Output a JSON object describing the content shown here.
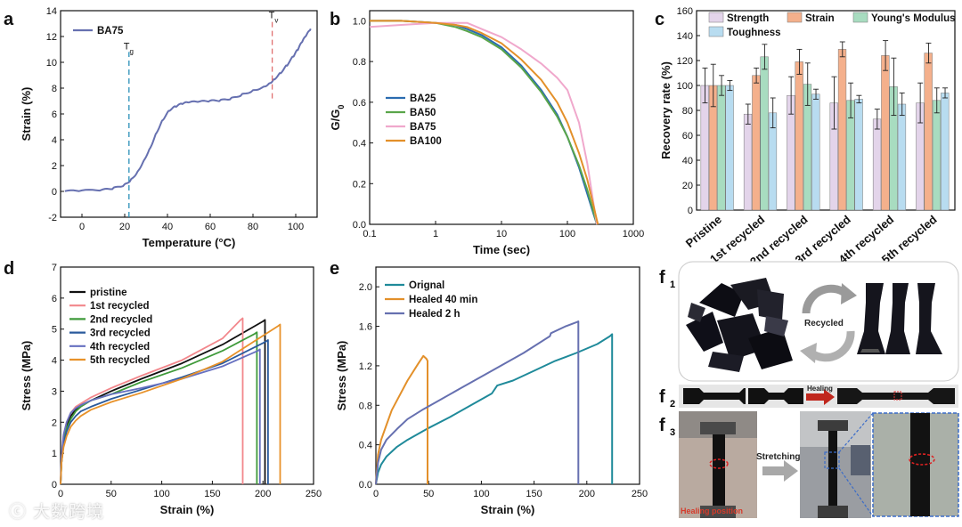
{
  "panel_labels": {
    "a": "a",
    "b": "b",
    "c": "c",
    "d": "d",
    "e": "e",
    "f1": "f",
    "f1_sub": "1",
    "f2": "f",
    "f2_sub": "2",
    "f3": "f",
    "f3_sub": "3"
  },
  "photos": {
    "f1_label": "Recycled",
    "f2_label": "Healing",
    "f3_label": "Stretching",
    "f3_caption": "Healing position"
  },
  "watermark": "大数跨境",
  "colors": {
    "ba75": "#6670b0",
    "tg_line": "#2a8fb8",
    "tv_line": "#e07070",
    "ba25": "#2a6cb0",
    "ba50": "#5aa54a",
    "ba75b": "#f0a8cc",
    "ba100": "#e3902a",
    "strength": "#e3d4ea",
    "strain": "#f4b08c",
    "modulus": "#a8dcc0",
    "toughness": "#b8dcf0",
    "pristine": "#111111",
    "r1": "#f2878c",
    "r2": "#3f9a3a",
    "r3": "#2a5a9c",
    "r4": "#6670c0",
    "r5": "#e8922a",
    "orig": "#1f8a9a",
    "healed40": "#e3902a",
    "healed2h": "#6670b0"
  },
  "chart_data": [
    {
      "id": "a",
      "type": "line",
      "xlabel": "Temperature (°C)",
      "ylabel": "Strain (%)",
      "xlim": [
        -10,
        110
      ],
      "ylim": [
        -2,
        14
      ],
      "xticks": [
        0,
        20,
        40,
        60,
        80,
        100
      ],
      "yticks": [
        -2,
        0,
        2,
        4,
        6,
        8,
        10,
        12,
        14
      ],
      "series": [
        {
          "name": "BA75",
          "x": [
            -8,
            0,
            10,
            15,
            20,
            23,
            26,
            29,
            32,
            35,
            38,
            41,
            44,
            47,
            50,
            55,
            60,
            65,
            70,
            75,
            80,
            85,
            88,
            90,
            93,
            96,
            99,
            101,
            103,
            105,
            107
          ],
          "y": [
            0.02,
            0.05,
            0.12,
            0.25,
            0.5,
            0.9,
            1.5,
            2.4,
            3.4,
            4.6,
            5.6,
            6.3,
            6.6,
            6.8,
            6.9,
            6.95,
            7.0,
            7.05,
            7.2,
            7.5,
            7.8,
            8.1,
            8.4,
            8.7,
            9.2,
            9.8,
            10.5,
            11.0,
            11.6,
            12.1,
            12.6
          ]
        }
      ],
      "annotations": [
        {
          "text": "T",
          "sub": "g",
          "x": 22
        },
        {
          "text": "T",
          "sub": "v",
          "x": 89
        }
      ]
    },
    {
      "id": "b",
      "type": "line",
      "xscale": "log",
      "xlabel": "Time (sec)",
      "ylabel": "G/G",
      "ylabel_sub": "0",
      "xlim": [
        0.1,
        1000
      ],
      "ylim": [
        0,
        1.05
      ],
      "xticks": [
        0.1,
        1,
        10,
        100,
        1000
      ],
      "xtick_labels": [
        "0.1",
        "1",
        "10",
        "100",
        "1000"
      ],
      "yticks": [
        0.0,
        0.2,
        0.4,
        0.6,
        0.8,
        1.0
      ],
      "ytick_labels": [
        "0.0",
        "0.2",
        "0.4",
        "0.6",
        "0.8",
        "1.0"
      ],
      "series": [
        {
          "name": "BA25",
          "x": [
            0.1,
            0.3,
            1,
            2,
            3,
            5,
            10,
            20,
            40,
            70,
            100,
            150,
            200,
            250,
            280
          ],
          "y": [
            1.0,
            1.0,
            0.99,
            0.98,
            0.96,
            0.93,
            0.87,
            0.78,
            0.66,
            0.54,
            0.43,
            0.28,
            0.15,
            0.05,
            0.0
          ]
        },
        {
          "name": "BA50",
          "x": [
            0.1,
            0.3,
            1,
            2,
            3,
            5,
            10,
            20,
            40,
            70,
            100,
            150,
            200,
            250,
            280
          ],
          "y": [
            1.0,
            1.0,
            0.99,
            0.97,
            0.95,
            0.92,
            0.86,
            0.77,
            0.65,
            0.53,
            0.43,
            0.29,
            0.17,
            0.06,
            0.0
          ]
        },
        {
          "name": "BA75",
          "x": [
            0.1,
            0.3,
            1,
            2,
            3,
            5,
            10,
            20,
            40,
            70,
            100,
            150,
            200,
            250,
            280
          ],
          "y": [
            0.97,
            0.98,
            0.99,
            0.99,
            0.99,
            0.96,
            0.92,
            0.86,
            0.79,
            0.72,
            0.66,
            0.5,
            0.3,
            0.1,
            0.0
          ]
        },
        {
          "name": "BA100",
          "x": [
            0.1,
            0.3,
            1,
            2,
            3,
            5,
            10,
            20,
            40,
            70,
            100,
            150,
            200,
            250,
            290
          ],
          "y": [
            1.0,
            1.0,
            0.99,
            0.98,
            0.97,
            0.94,
            0.89,
            0.81,
            0.71,
            0.6,
            0.5,
            0.35,
            0.22,
            0.09,
            0.0
          ]
        }
      ]
    },
    {
      "id": "c",
      "type": "bar",
      "ylabel": "Recovery rate (%)",
      "ylim": [
        0,
        160
      ],
      "yticks": [
        0,
        20,
        40,
        60,
        80,
        100,
        120,
        140,
        160
      ],
      "categories": [
        "Pristine",
        "1st recycled",
        "2nd recycled",
        "3rd recycled",
        "4th recycled",
        "5th recycled"
      ],
      "series": [
        {
          "name": "Strength",
          "values": [
            100,
            77,
            92,
            86,
            73,
            86
          ],
          "err": [
            14,
            8,
            15,
            21,
            8,
            16
          ]
        },
        {
          "name": "Strain",
          "values": [
            100,
            108,
            119,
            129,
            124,
            126
          ],
          "err": [
            17,
            6,
            10,
            6,
            12,
            8
          ]
        },
        {
          "name": "Young's Modulus",
          "values": [
            100,
            123,
            101,
            88,
            99,
            88
          ],
          "err": [
            8,
            10,
            17,
            14,
            23,
            10
          ]
        },
        {
          "name": "Toughness",
          "values": [
            100,
            78,
            93,
            89,
            85,
            94
          ],
          "err": [
            4,
            12,
            4,
            3,
            9,
            4
          ]
        }
      ]
    },
    {
      "id": "d",
      "type": "line",
      "xlabel": "Strain (%)",
      "ylabel": "Stress (MPa)",
      "xlim": [
        0,
        250
      ],
      "ylim": [
        0,
        7
      ],
      "xticks": [
        0,
        50,
        100,
        150,
        200,
        250
      ],
      "yticks": [
        0,
        1,
        2,
        3,
        4,
        5,
        6,
        7
      ],
      "series": [
        {
          "name": "pristine",
          "x": [
            0,
            1,
            3,
            6,
            10,
            15,
            20,
            30,
            50,
            80,
            120,
            160,
            200,
            202,
            202
          ],
          "y": [
            0,
            0.8,
            1.5,
            1.9,
            2.2,
            2.4,
            2.55,
            2.7,
            3.0,
            3.4,
            3.9,
            4.5,
            5.25,
            5.3,
            0
          ]
        },
        {
          "name": "1st recycled",
          "x": [
            0,
            1,
            3,
            6,
            10,
            15,
            20,
            30,
            50,
            80,
            120,
            160,
            178,
            180,
            180
          ],
          "y": [
            0,
            0.9,
            1.6,
            2.0,
            2.3,
            2.5,
            2.6,
            2.8,
            3.1,
            3.5,
            4.0,
            4.7,
            5.3,
            5.35,
            0
          ]
        },
        {
          "name": "2nd recycled",
          "x": [
            0,
            1,
            3,
            6,
            10,
            15,
            20,
            30,
            50,
            80,
            120,
            160,
            192,
            194,
            194
          ],
          "y": [
            0,
            0.7,
            1.4,
            1.8,
            2.1,
            2.35,
            2.5,
            2.7,
            2.9,
            3.3,
            3.75,
            4.3,
            4.85,
            4.9,
            0
          ]
        },
        {
          "name": "3rd recycled",
          "x": [
            0,
            1,
            3,
            6,
            10,
            15,
            20,
            30,
            50,
            80,
            120,
            160,
            203,
            205,
            205
          ],
          "y": [
            0,
            0.7,
            1.3,
            1.7,
            2.0,
            2.2,
            2.35,
            2.5,
            2.75,
            3.05,
            3.45,
            3.9,
            4.6,
            4.65,
            0
          ]
        },
        {
          "name": "4th recycled",
          "x": [
            0,
            1,
            3,
            6,
            10,
            15,
            20,
            30,
            50,
            80,
            120,
            160,
            195,
            197,
            197
          ],
          "y": [
            0,
            0.9,
            1.6,
            2.0,
            2.3,
            2.45,
            2.55,
            2.7,
            2.9,
            3.1,
            3.4,
            3.8,
            4.3,
            4.35,
            0
          ]
        },
        {
          "name": "5th recycled",
          "x": [
            0,
            1,
            3,
            6,
            10,
            15,
            20,
            30,
            50,
            80,
            120,
            160,
            215,
            217,
            217
          ],
          "y": [
            0,
            0.7,
            1.2,
            1.55,
            1.85,
            2.05,
            2.2,
            2.4,
            2.65,
            2.95,
            3.4,
            3.95,
            5.1,
            5.15,
            0
          ]
        }
      ]
    },
    {
      "id": "e",
      "type": "line",
      "xlabel": "Strain (%)",
      "ylabel": "Stress (MPa)",
      "xlim": [
        0,
        250
      ],
      "ylim": [
        0,
        2.2
      ],
      "xticks": [
        0,
        50,
        100,
        150,
        200,
        250
      ],
      "yticks": [
        0.0,
        0.4,
        0.8,
        1.2,
        1.6,
        2.0
      ],
      "ytick_labels": [
        "0.0",
        "0.4",
        "0.8",
        "1.2",
        "1.6",
        "2.0"
      ],
      "series": [
        {
          "name": "Orignal",
          "x": [
            0,
            2,
            5,
            10,
            20,
            30,
            50,
            70,
            90,
            110,
            115,
            130,
            150,
            170,
            190,
            210,
            222,
            224,
            224
          ],
          "y": [
            0,
            0.12,
            0.2,
            0.28,
            0.38,
            0.45,
            0.57,
            0.68,
            0.8,
            0.92,
            1.0,
            1.05,
            1.15,
            1.25,
            1.33,
            1.42,
            1.5,
            1.52,
            0
          ]
        },
        {
          "name": "Healed 40 min",
          "x": [
            0,
            2,
            5,
            10,
            15,
            20,
            30,
            40,
            45,
            47,
            48,
            49,
            49
          ],
          "y": [
            0,
            0.3,
            0.45,
            0.6,
            0.75,
            0.85,
            1.05,
            1.22,
            1.3,
            1.28,
            1.27,
            1.25,
            0
          ]
        },
        {
          "name": "Healed 2 h",
          "x": [
            0,
            2,
            5,
            10,
            20,
            30,
            45,
            55,
            80,
            110,
            140,
            165,
            166,
            180,
            190,
            192,
            192
          ],
          "y": [
            0,
            0.22,
            0.35,
            0.45,
            0.56,
            0.66,
            0.76,
            0.82,
            0.97,
            1.15,
            1.33,
            1.5,
            1.53,
            1.6,
            1.64,
            1.65,
            0
          ]
        }
      ]
    }
  ]
}
